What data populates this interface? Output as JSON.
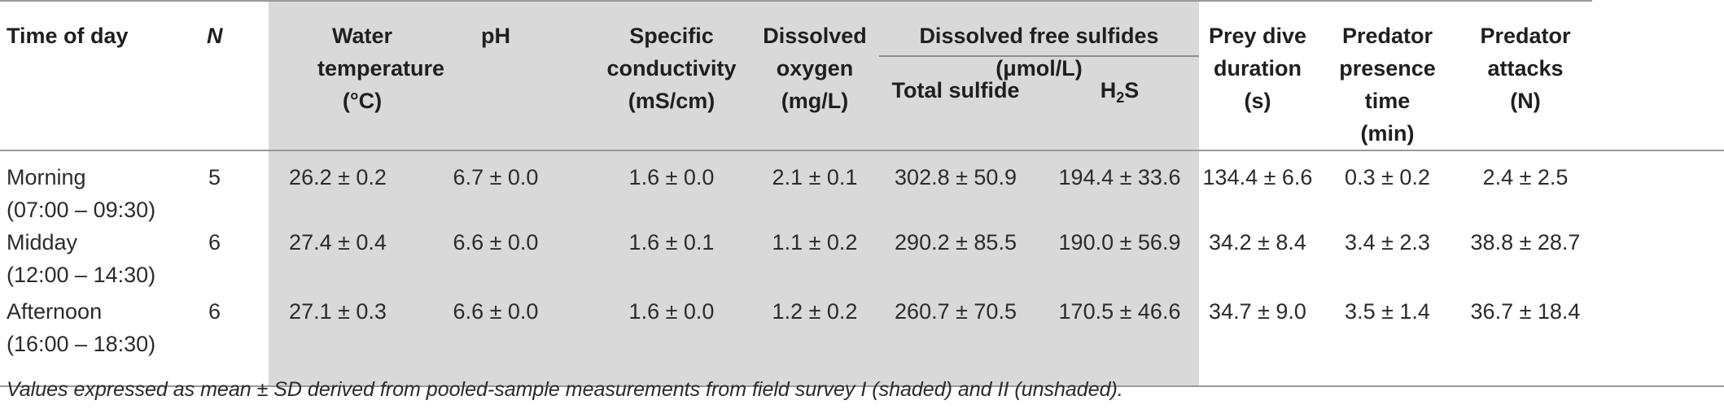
{
  "table": {
    "headers": {
      "time_of_day": "Time of day",
      "n": "N",
      "water_temperature": [
        "Water",
        "temperature",
        "(°C)"
      ],
      "ph": "pH",
      "specific_conductivity": [
        "Specific",
        "conductivity",
        "(mS/cm)"
      ],
      "dissolved_oxygen": [
        "Dissolved",
        "oxygen",
        "(mg/L)"
      ],
      "dissolved_free_sulfides": "Dissolved free sulfides (μmol/L)",
      "total_sulfide": "Total sulfide",
      "h2s_main": "H",
      "h2s_sub": "2",
      "h2s_tail": "S",
      "prey_dive_duration": [
        "Prey dive",
        "duration",
        "(s)"
      ],
      "predator_presence_time": [
        "Predator",
        "presence time",
        "(min)"
      ],
      "predator_attacks": [
        "Predator",
        "attacks",
        "(N)"
      ]
    },
    "rows": [
      {
        "time": "Morning",
        "time_range": "(07:00 – 09:30)",
        "n": "5",
        "water_temperature": "26.2 ± 0.2",
        "ph": "6.7 ± 0.0",
        "specific_conductivity": "1.6 ± 0.0",
        "dissolved_oxygen": "2.1 ± 0.1",
        "total_sulfide": "302.8 ± 50.9",
        "h2s": "194.4 ± 33.6",
        "prey_dive_duration": "134.4 ± 6.6",
        "predator_presence_time": "0.3 ± 0.2",
        "predator_attacks": "2.4 ± 2.5"
      },
      {
        "time": "Midday",
        "time_range": "(12:00 – 14:30)",
        "n": "6",
        "water_temperature": "27.4 ± 0.4",
        "ph": "6.6 ± 0.0",
        "specific_conductivity": "1.6 ± 0.1",
        "dissolved_oxygen": "1.1 ± 0.2",
        "total_sulfide": "290.2 ± 85.5",
        "h2s": "190.0 ± 56.9",
        "prey_dive_duration": "34.2 ± 8.4",
        "predator_presence_time": "3.4 ± 2.3",
        "predator_attacks": "38.8 ± 28.7"
      },
      {
        "time": "Afternoon",
        "time_range": "(16:00 – 18:30)",
        "n": "6",
        "water_temperature": "27.1 ± 0.3",
        "ph": "6.6 ± 0.0",
        "specific_conductivity": "1.6 ± 0.0",
        "dissolved_oxygen": "1.2 ± 0.2",
        "total_sulfide": "260.7 ± 70.5",
        "h2s": "170.5 ± 46.6",
        "prey_dive_duration": "34.7 ± 9.0",
        "predator_presence_time": "3.5 ± 1.4",
        "predator_attacks": "36.7 ± 18.4"
      }
    ],
    "footnote": "Values expressed as mean ± SD derived from pooled-sample measurements from field survey I (shaded) and II (unshaded).",
    "colors": {
      "shade": "#d9d9d9",
      "rule": "#9a9a9a",
      "text": "#2b2b2b"
    }
  }
}
